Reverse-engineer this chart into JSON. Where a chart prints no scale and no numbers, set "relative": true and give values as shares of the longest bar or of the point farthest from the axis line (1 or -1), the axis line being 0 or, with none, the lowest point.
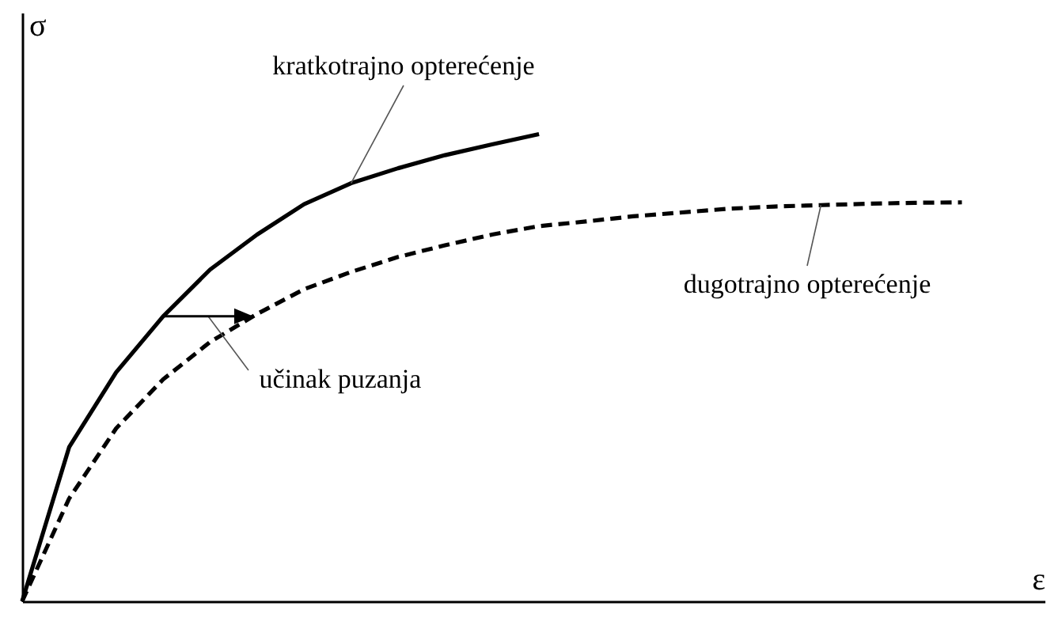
{
  "chart_data": {
    "type": "line",
    "relative": true,
    "xlabel": "ε",
    "ylabel": "σ",
    "categories": [
      null,
      null,
      null,
      null,
      null,
      null,
      null,
      null,
      null,
      null,
      null,
      null,
      null,
      null,
      null,
      null,
      null,
      null,
      null,
      null,
      null
    ],
    "series": [
      {
        "color": "#000000",
        "line_style": "solid",
        "values": [
          0,
          0.33,
          0.49,
          0.61,
          0.71,
          0.785,
          0.85,
          0.895,
          0.927,
          0.955,
          0.978,
          1.0,
          null,
          null,
          null,
          null,
          null,
          null,
          null,
          null,
          null
        ]
      },
      {
        "color": "#000000",
        "line_style": "dashed",
        "values": [
          0,
          0.22,
          0.37,
          0.475,
          0.555,
          0.615,
          0.668,
          0.705,
          0.737,
          0.762,
          0.785,
          0.803,
          0.813,
          0.824,
          0.832,
          0.84,
          0.845,
          0.848,
          0.851,
          0.853,
          0.854
        ]
      }
    ],
    "annotations": [
      "kratkotrajno opterećenje",
      "dugotrajno opterećenje",
      "učinak puzanja"
    ]
  }
}
